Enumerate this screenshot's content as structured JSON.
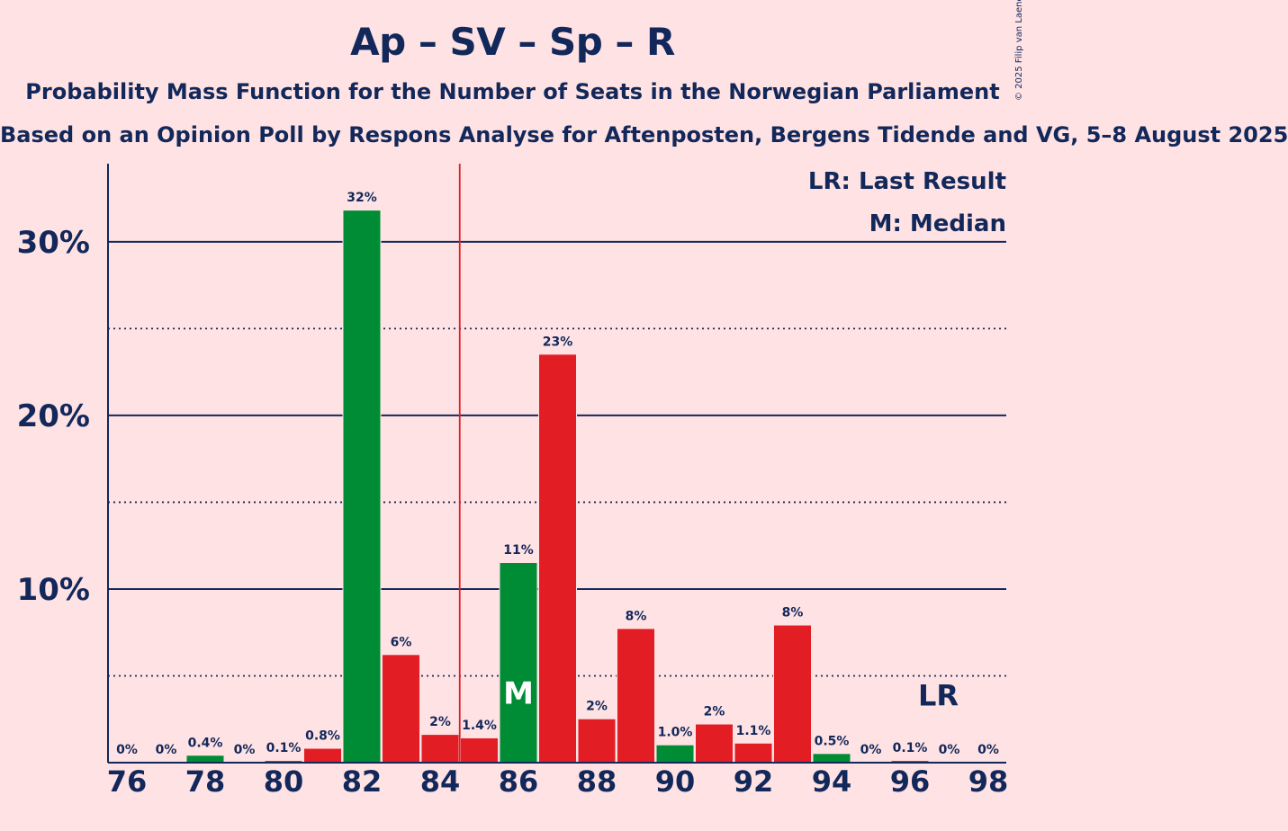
{
  "chart_data": {
    "type": "bar",
    "title": "Ap – SV – Sp – R",
    "subtitle": "Probability Mass Function for the Number of Seats in the Norwegian Parliament",
    "subsubtitle": "Based on an Opinion Poll by Respons Analyse for Aftenposten, Bergens Tidende and VG, 5–8 August 2025",
    "copyright": "© 2025 Filip van Laenen",
    "x": [
      76,
      77,
      78,
      79,
      80,
      81,
      82,
      83,
      84,
      85,
      86,
      87,
      88,
      89,
      90,
      91,
      92,
      93,
      94,
      95,
      96,
      97,
      98
    ],
    "values": [
      0,
      0,
      0.4,
      0,
      0.1,
      0.8,
      31.8,
      6.2,
      1.6,
      1.4,
      11.5,
      23.5,
      2.5,
      7.7,
      1.0,
      2.2,
      1.1,
      7.9,
      0.5,
      0,
      0.1,
      0,
      0
    ],
    "value_labels": [
      "0%",
      "0%",
      "0.4%",
      "0%",
      "0.1%",
      "0.8%",
      "32%",
      "6%",
      "2%",
      "1.4%",
      "11%",
      "23%",
      "2%",
      "8%",
      "1.0%",
      "2%",
      "1.1%",
      "8%",
      "0.5%",
      "0%",
      "0.1%",
      "0%",
      "0%"
    ],
    "bar_colors": [
      "#e31d24",
      "#e31d24",
      "#008c35",
      "#e31d24",
      "#e31d24",
      "#e31d24",
      "#008c35",
      "#e31d24",
      "#e31d24",
      "#e31d24",
      "#008c35",
      "#e31d24",
      "#e31d24",
      "#e31d24",
      "#008c35",
      "#e31d24",
      "#e31d24",
      "#e31d24",
      "#008c35",
      "#e31d24",
      "#e31d24",
      "#e31d24",
      "#e31d24"
    ],
    "x_tick_labels": [
      "76",
      "78",
      "80",
      "82",
      "84",
      "86",
      "88",
      "90",
      "92",
      "94",
      "96",
      "98"
    ],
    "y_tick_labels": [
      "10%",
      "20%",
      "30%"
    ],
    "ylim": [
      0,
      34.5
    ],
    "major_gridlines": [
      10,
      20,
      30
    ],
    "minor_gridlines": [
      5,
      15,
      25
    ],
    "majority_line_x": 84.5,
    "median_x": 86,
    "median_marker": "M",
    "last_result_x": 97,
    "last_result_marker": "LR",
    "legend": [
      "LR: Last Result",
      "M: Median"
    ],
    "legend_position": "top-right",
    "colors": {
      "background": "#ffe2e3",
      "text": "#12285a",
      "red": "#e31d24",
      "green": "#008c35",
      "majority_line": "#e31d24"
    }
  }
}
